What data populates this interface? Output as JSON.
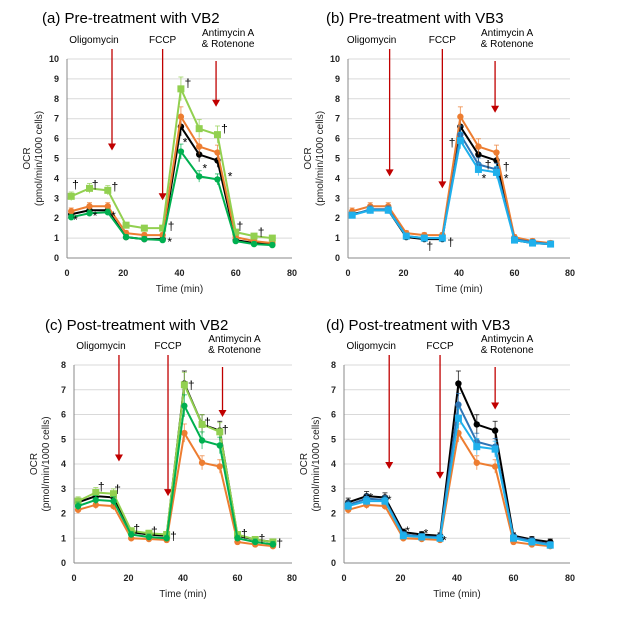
{
  "colors": {
    "black": "#000000",
    "orange": "#ed7d31",
    "lightgreen": "#92d050",
    "green": "#00b050",
    "blue": "#2e75b6",
    "lightblue": "#1fb0ec",
    "arrow": "#c00000",
    "grid": "#d9d9d9"
  },
  "chart_data": [
    {
      "type": "line",
      "title": "(a) Pre-treatment with VB2",
      "xlabel": "Time (min)",
      "ylabel": [
        "OCR",
        "(pmol/min/1000 cells)"
      ],
      "xlim": [
        0,
        80
      ],
      "ylim": [
        0,
        10
      ],
      "xticks": [
        0,
        20,
        40,
        60,
        80
      ],
      "yticks": [
        0,
        1,
        2,
        3,
        4,
        5,
        6,
        7,
        8,
        9,
        10
      ],
      "grid": "horizontal",
      "x": [
        1.5,
        8,
        14.5,
        21,
        27.5,
        34,
        40.5,
        47,
        53.5,
        60,
        66.5,
        73
      ],
      "injections": [
        {
          "label": "Oligomycin",
          "x": 16,
          "y": 5.4
        },
        {
          "label": "FCCP",
          "x": 34,
          "y": 2.9
        },
        {
          "label": "Antimycin A",
          "label2": "& Rotenone",
          "x": 53,
          "y": 7.6
        }
      ],
      "series": [
        {
          "color": "black",
          "marker": "circle",
          "values": [
            2.2,
            2.4,
            2.4,
            1.05,
            0.95,
            0.95,
            6.6,
            5.2,
            4.9,
            0.9,
            0.75,
            0.7
          ]
        },
        {
          "color": "orange",
          "marker": "circle",
          "values": [
            2.35,
            2.6,
            2.6,
            1.25,
            1.15,
            1.15,
            7.1,
            5.6,
            5.3,
            1.05,
            0.85,
            0.75
          ]
        },
        {
          "color": "lightgreen",
          "marker": "square",
          "values": [
            3.1,
            3.5,
            3.4,
            1.65,
            1.5,
            1.5,
            8.5,
            6.5,
            6.2,
            1.3,
            1.1,
            1.0
          ]
        },
        {
          "color": "green",
          "marker": "circle",
          "values": [
            2.05,
            2.25,
            2.3,
            1.05,
            0.95,
            0.9,
            5.35,
            4.1,
            3.95,
            0.85,
            0.7,
            0.65
          ]
        }
      ],
      "annotations": [
        {
          "text": "†",
          "x": 3,
          "y": 3.7
        },
        {
          "text": "†",
          "x": 10,
          "y": 3.7
        },
        {
          "text": "†",
          "x": 17,
          "y": 3.6
        },
        {
          "text": "*",
          "x": 3,
          "y": 1.9
        },
        {
          "text": "*",
          "x": 10,
          "y": 2.1
        },
        {
          "text": "*",
          "x": 16.5,
          "y": 2.1
        },
        {
          "text": "†",
          "x": 37,
          "y": 1.6
        },
        {
          "text": "*",
          "x": 36.5,
          "y": 0.8
        },
        {
          "text": "†",
          "x": 43,
          "y": 8.8
        },
        {
          "text": "*",
          "x": 42,
          "y": 5.8
        },
        {
          "text": "*",
          "x": 49,
          "y": 4.5
        },
        {
          "text": "†",
          "x": 56,
          "y": 6.5
        },
        {
          "text": "*",
          "x": 58,
          "y": 4.1
        },
        {
          "text": "†",
          "x": 61.5,
          "y": 1.6
        },
        {
          "text": "†",
          "x": 69,
          "y": 1.3
        }
      ]
    },
    {
      "type": "line",
      "title": "(b) Pre-treatment with  VB3",
      "xlabel": "Time (min)",
      "ylabel": [
        "OCR",
        "(pmol/min/1000 cells)"
      ],
      "xlim": [
        0,
        80
      ],
      "ylim": [
        0,
        10
      ],
      "xticks": [
        0,
        20,
        40,
        60,
        80
      ],
      "yticks": [
        0,
        1,
        2,
        3,
        4,
        5,
        6,
        7,
        8,
        9,
        10
      ],
      "grid": "horizontal",
      "x": [
        1.5,
        8,
        14.5,
        21,
        27.5,
        34,
        40.5,
        47,
        53.5,
        60,
        66.5,
        73
      ],
      "injections": [
        {
          "label": "Oligomycin",
          "x": 15,
          "y": 4.1
        },
        {
          "label": "FCCP",
          "x": 34,
          "y": 3.5
        },
        {
          "label": "Antimycin A",
          "label2": "& Rotenone",
          "x": 53,
          "y": 7.3
        }
      ],
      "series": [
        {
          "color": "black",
          "marker": "circle",
          "values": [
            2.2,
            2.4,
            2.4,
            1.05,
            0.95,
            0.95,
            6.6,
            5.2,
            4.9,
            0.9,
            0.75,
            0.7
          ]
        },
        {
          "color": "orange",
          "marker": "circle",
          "values": [
            2.35,
            2.6,
            2.6,
            1.25,
            1.15,
            1.15,
            7.1,
            5.6,
            5.3,
            1.05,
            0.85,
            0.75
          ]
        },
        {
          "color": "blue",
          "marker": "circle",
          "values": [
            2.15,
            2.45,
            2.45,
            1.1,
            1.0,
            1.0,
            6.2,
            4.7,
            4.45,
            0.95,
            0.8,
            0.7
          ]
        },
        {
          "color": "lightblue",
          "marker": "square",
          "values": [
            2.15,
            2.4,
            2.4,
            1.1,
            1.0,
            1.0,
            5.9,
            4.45,
            4.3,
            0.9,
            0.75,
            0.7
          ]
        }
      ],
      "annotations": [
        {
          "text": "†",
          "x": 29.5,
          "y": 0.6
        },
        {
          "text": "†",
          "x": 37,
          "y": 0.8
        },
        {
          "text": "†",
          "x": 37.5,
          "y": 5.8
        },
        {
          "text": "†",
          "x": 50.5,
          "y": 4.7
        },
        {
          "text": "*",
          "x": 49,
          "y": 4.0
        },
        {
          "text": "†",
          "x": 57,
          "y": 4.6
        },
        {
          "text": "*",
          "x": 57,
          "y": 4.0
        }
      ]
    },
    {
      "type": "line",
      "title": "(c) Post-treatment with VB2",
      "xlabel": "Time (min)",
      "ylabel": [
        "OCR",
        "(pmol/min/1000 cells)"
      ],
      "xlim": [
        0,
        80
      ],
      "ylim": [
        0,
        8
      ],
      "xticks": [
        0,
        20,
        40,
        60,
        80
      ],
      "yticks": [
        0,
        1,
        2,
        3,
        4,
        5,
        6,
        7,
        8
      ],
      "grid": "horizontal",
      "x": [
        1.5,
        8,
        14.5,
        21,
        27.5,
        34,
        40.5,
        47,
        53.5,
        60,
        66.5,
        73
      ],
      "injections": [
        {
          "label": "Oligomycin",
          "x": 16.5,
          "y": 4.1
        },
        {
          "label": "FCCP",
          "x": 34.5,
          "y": 2.7
        },
        {
          "label": "Antimycin A",
          "label2": "& Rotenone",
          "x": 54.5,
          "y": 5.9
        }
      ],
      "series": [
        {
          "color": "black",
          "marker": "circle",
          "values": [
            2.45,
            2.7,
            2.65,
            1.25,
            1.15,
            1.1,
            7.25,
            5.6,
            5.35,
            1.1,
            0.95,
            0.85
          ]
        },
        {
          "color": "orange",
          "marker": "circle",
          "values": [
            2.15,
            2.35,
            2.3,
            1.0,
            0.97,
            0.93,
            5.25,
            4.05,
            3.9,
            0.85,
            0.75,
            0.68
          ]
        },
        {
          "color": "lightgreen",
          "marker": "square",
          "values": [
            2.5,
            2.85,
            2.8,
            1.3,
            1.2,
            1.15,
            7.2,
            5.6,
            5.3,
            1.15,
            0.95,
            0.85
          ]
        },
        {
          "color": "green",
          "marker": "circle",
          "values": [
            2.3,
            2.55,
            2.5,
            1.15,
            1.05,
            1.0,
            6.35,
            4.95,
            4.75,
            1.0,
            0.85,
            0.75
          ]
        }
      ],
      "annotations": [
        {
          "text": "†",
          "x": 10,
          "y": 3.1
        },
        {
          "text": "†",
          "x": 16,
          "y": 3.0
        },
        {
          "text": "†",
          "x": 23,
          "y": 1.4
        },
        {
          "text": "†",
          "x": 29.5,
          "y": 1.3
        },
        {
          "text": "†",
          "x": 36.5,
          "y": 1.1
        },
        {
          "text": "†",
          "x": 43,
          "y": 7.2
        },
        {
          "text": "†",
          "x": 49,
          "y": 5.7
        },
        {
          "text": "†",
          "x": 55.5,
          "y": 5.4
        },
        {
          "text": "†",
          "x": 62.5,
          "y": 1.2
        },
        {
          "text": "†",
          "x": 69,
          "y": 1.0
        },
        {
          "text": "†",
          "x": 75.5,
          "y": 0.8
        }
      ]
    },
    {
      "type": "line",
      "title": "(d) Post-treatment with  VB3",
      "xlabel": "Time (min)",
      "ylabel": [
        "OCR",
        "(pmol/min/1000 cells)"
      ],
      "xlim": [
        0,
        80
      ],
      "ylim": [
        0,
        8
      ],
      "xticks": [
        0,
        20,
        40,
        60,
        80
      ],
      "yticks": [
        0,
        1,
        2,
        3,
        4,
        5,
        6,
        7,
        8
      ],
      "grid": "horizontal",
      "x": [
        1.5,
        8,
        14.5,
        21,
        27.5,
        34,
        40.5,
        47,
        53.5,
        60,
        66.5,
        73
      ],
      "injections": [
        {
          "label": "Oligomycin",
          "x": 16,
          "y": 3.8
        },
        {
          "label": "FCCP",
          "x": 34,
          "y": 3.4
        },
        {
          "label": "Antimycin A",
          "label2": "& Rotenone",
          "x": 53.5,
          "y": 6.2
        }
      ],
      "series": [
        {
          "color": "black",
          "marker": "circle",
          "values": [
            2.45,
            2.7,
            2.65,
            1.25,
            1.15,
            1.1,
            7.25,
            5.6,
            5.35,
            1.1,
            0.95,
            0.85
          ]
        },
        {
          "color": "orange",
          "marker": "circle",
          "values": [
            2.15,
            2.35,
            2.3,
            1.0,
            0.97,
            0.93,
            5.25,
            4.05,
            3.9,
            0.85,
            0.75,
            0.68
          ]
        },
        {
          "color": "blue",
          "marker": "circle",
          "values": [
            2.35,
            2.6,
            2.55,
            1.15,
            1.07,
            1.05,
            6.4,
            4.9,
            4.7,
            1.05,
            0.9,
            0.75
          ]
        },
        {
          "color": "lightblue",
          "marker": "square",
          "values": [
            2.3,
            2.5,
            2.5,
            1.1,
            1.05,
            1.0,
            5.85,
            4.7,
            4.6,
            1.0,
            0.85,
            0.72
          ]
        }
      ],
      "annotations": [
        {
          "text": "*",
          "x": 9.5,
          "y": 2.65
        },
        {
          "text": "*",
          "x": 16,
          "y": 2.55
        },
        {
          "text": "*",
          "x": 22.5,
          "y": 1.3
        },
        {
          "text": "*",
          "x": 29,
          "y": 1.2
        },
        {
          "text": "*",
          "x": 35.5,
          "y": 0.9
        }
      ]
    }
  ]
}
